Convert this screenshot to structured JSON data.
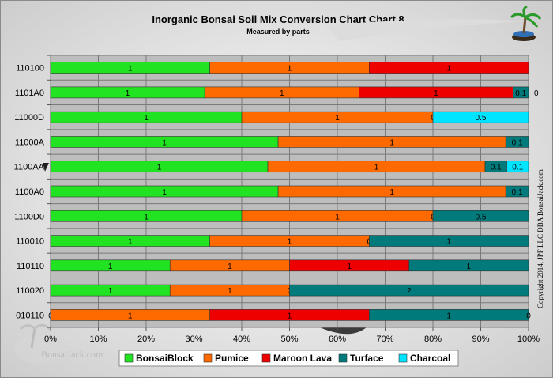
{
  "chart_data": {
    "type": "bar",
    "orientation": "horizontal",
    "stacked": "percent",
    "title": "Inorganic Bonsai Soil Mix Conversion Chart Chart 8",
    "subtitle": "Measured by parts",
    "categories": [
      "110100",
      "1101A0",
      "11000D",
      "11000A",
      "1100AA",
      "1100A0",
      "1100D0",
      "110010",
      "110110",
      "110020",
      "010110"
    ],
    "x_ticks": [
      "0%",
      "10%",
      "20%",
      "30%",
      "40%",
      "50%",
      "60%",
      "70%",
      "80%",
      "90%",
      "100%"
    ],
    "xlim": [
      0,
      100
    ],
    "grid": true,
    "legend_position": "bottom",
    "series": [
      {
        "name": "BonsaiBlock",
        "color": "#22e322",
        "values": [
          1,
          1,
          1,
          1,
          1,
          1,
          1,
          1,
          1,
          1,
          0
        ]
      },
      {
        "name": "Pumice",
        "color": "#ff6a00",
        "values": [
          1,
          1,
          1,
          1,
          1,
          1,
          1,
          1,
          1,
          1,
          1
        ]
      },
      {
        "name": "Maroon Lava",
        "color": "#ee0000",
        "values": [
          1,
          1,
          0,
          0,
          0,
          0,
          0,
          0,
          1,
          0,
          1
        ]
      },
      {
        "name": "Turface",
        "color": "#007a7a",
        "values": [
          0,
          0.1,
          0,
          0.1,
          0.1,
          0.1,
          0.5,
          1,
          1,
          2,
          1
        ]
      },
      {
        "name": "Charcoal",
        "color": "#00e5ff",
        "values": [
          0,
          0,
          0.5,
          0,
          0.1,
          0,
          0,
          0,
          0,
          0,
          0
        ]
      }
    ],
    "point_labels": [
      [
        "1",
        "1",
        "1",
        "",
        ""
      ],
      [
        "1",
        "1",
        "1",
        "0.1",
        ""
      ],
      [
        "1",
        "1",
        "0",
        "",
        "0.5"
      ],
      [
        "1",
        "1",
        "",
        "0.1",
        ""
      ],
      [
        "1",
        "1",
        "",
        "0.1",
        "0.1"
      ],
      [
        "1",
        "1",
        "",
        "0.1",
        ""
      ],
      [
        "1",
        "1",
        "0",
        "0.5",
        ""
      ],
      [
        "1",
        "1",
        "0",
        "1",
        ""
      ],
      [
        "1",
        "1",
        "1",
        "1",
        ""
      ],
      [
        "1",
        "1",
        "0",
        "2",
        ""
      ],
      [
        "0",
        "1",
        "1",
        "1",
        "0"
      ]
    ],
    "outside_labels": [
      "",
      "0",
      "",
      "",
      "",
      "",
      "",
      "",
      "",
      "",
      ""
    ]
  },
  "copyright": "Copyright 2014, JPF LLC DBA BonsaiJack.com",
  "watermark": "BonsaiJack.com"
}
